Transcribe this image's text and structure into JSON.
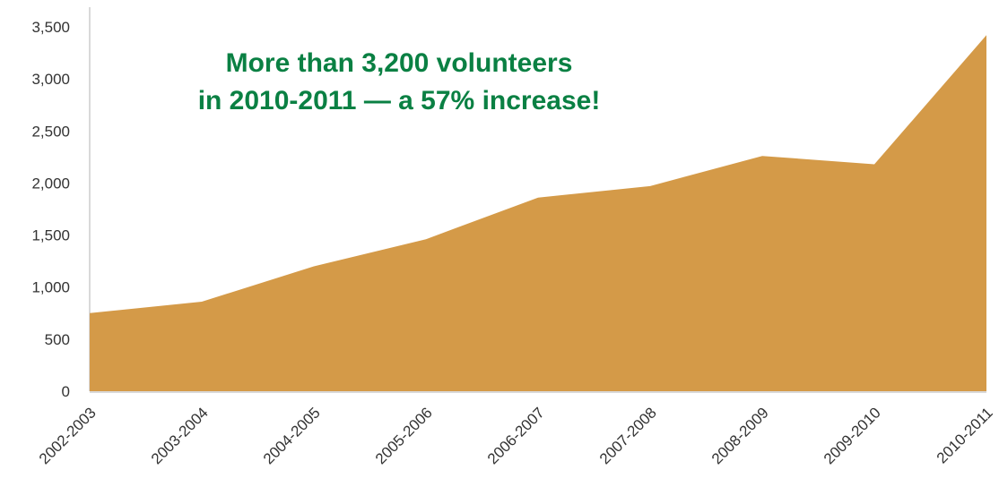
{
  "chart_data": {
    "type": "area",
    "categories": [
      "2002-2003",
      "2003-2004",
      "2004-2005",
      "2005-2006",
      "2006-2007",
      "2007-2008",
      "2008-2009",
      "2009-2010",
      "2010-2011"
    ],
    "values": [
      750,
      860,
      1200,
      1460,
      1860,
      1970,
      2260,
      2180,
      3420
    ],
    "ylim": [
      0,
      3500
    ],
    "yticks": [
      "0",
      "500",
      "1,000",
      "1,500",
      "2,000",
      "2,500",
      "3,000",
      "3,500"
    ],
    "grid": false,
    "legend": "none",
    "annotation": [
      "More than 3,200 volunteers",
      "in 2010-2011 — a 57% increase!"
    ],
    "colors": {
      "area": "#D49A48",
      "annotation": "#0A8043",
      "axis": "#D9D9D9"
    }
  }
}
